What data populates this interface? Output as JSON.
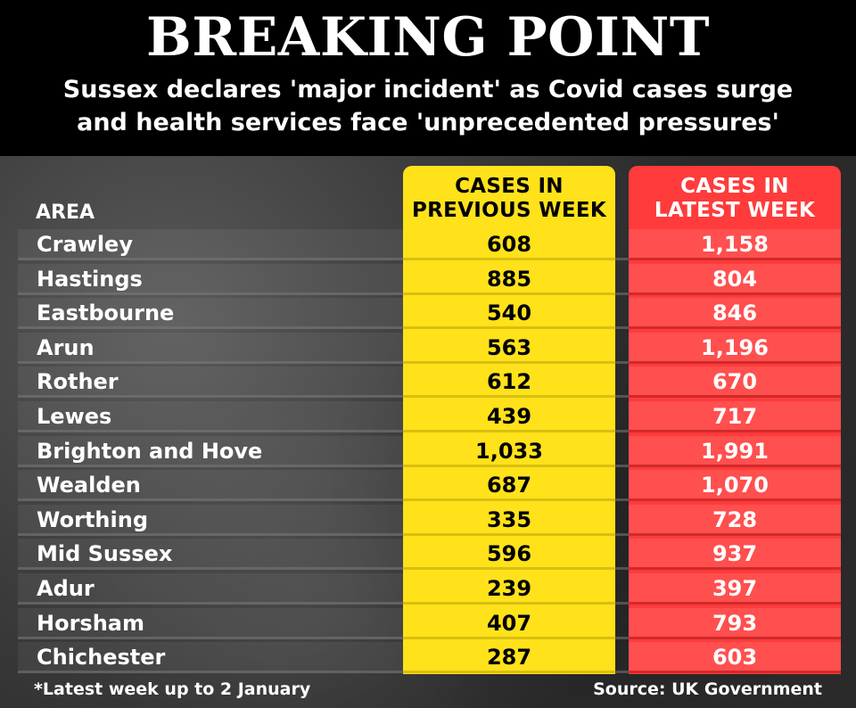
{
  "header": {
    "title": "BREAKING POINT",
    "subtitle_line1": "Sussex declares 'major incident' as Covid cases surge",
    "subtitle_line2": "and health services face 'unprecedented pressures'"
  },
  "colors": {
    "previous_week": "#ffe21a",
    "latest_week": "#ff3b3b"
  },
  "chart_data": {
    "type": "table",
    "columns": {
      "area": "AREA",
      "previous_line1": "CASES IN",
      "previous_line2": "PREVIOUS WEEK",
      "latest_line1": "CASES IN",
      "latest_line2": "LATEST  WEEK"
    },
    "rows": [
      {
        "area": "Crawley",
        "previous": "608",
        "latest": "1,158"
      },
      {
        "area": "Hastings",
        "previous": "885",
        "latest": "804"
      },
      {
        "area": "Eastbourne",
        "previous": "540",
        "latest": "846"
      },
      {
        "area": "Arun",
        "previous": "563",
        "latest": "1,196"
      },
      {
        "area": "Rother",
        "previous": "612",
        "latest": "670"
      },
      {
        "area": "Lewes",
        "previous": "439",
        "latest": "717"
      },
      {
        "area": "Brighton and Hove",
        "previous": "1,033",
        "latest": "1,991"
      },
      {
        "area": "Wealden",
        "previous": "687",
        "latest": "1,070"
      },
      {
        "area": "Worthing",
        "previous": "335",
        "latest": "728"
      },
      {
        "area": "Mid Sussex",
        "previous": "596",
        "latest": "937"
      },
      {
        "area": "Adur",
        "previous": "239",
        "latest": "397"
      },
      {
        "area": "Horsham",
        "previous": "407",
        "latest": "793"
      },
      {
        "area": "Chichester",
        "previous": "287",
        "latest": "603"
      }
    ]
  },
  "footer": {
    "note": "*Latest week up to 2 January",
    "source": "Source: UK Government"
  }
}
